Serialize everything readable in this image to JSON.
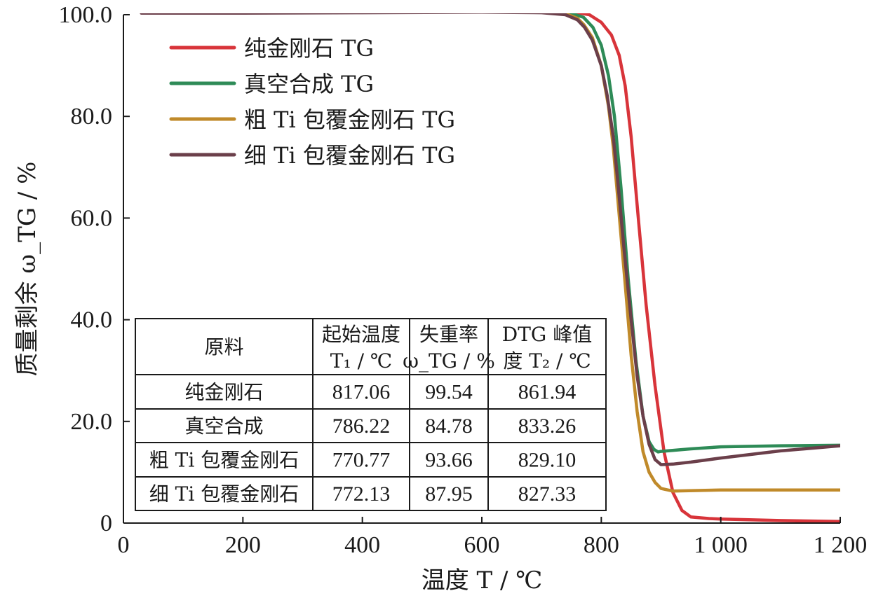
{
  "chart_data": {
    "type": "line",
    "xlabel": "温度 T / ℃",
    "ylabel": "质量剩余 ω_TG / %",
    "xlim": [
      0,
      1200
    ],
    "ylim": [
      0,
      100
    ],
    "x_ticks": [
      {
        "value": 0,
        "label": "0"
      },
      {
        "value": 200,
        "label": "200"
      },
      {
        "value": 400,
        "label": "400"
      },
      {
        "value": 600,
        "label": "600"
      },
      {
        "value": 800,
        "label": "800"
      },
      {
        "value": 1000,
        "label": "1 000"
      },
      {
        "value": 1200,
        "label": "1 200"
      }
    ],
    "y_ticks": [
      {
        "value": 0,
        "label": "0"
      },
      {
        "value": 20,
        "label": "20.0"
      },
      {
        "value": 40,
        "label": "40.0"
      },
      {
        "value": 60,
        "label": "60.0"
      },
      {
        "value": 80,
        "label": "80.0"
      },
      {
        "value": 100,
        "label": "100.0"
      }
    ],
    "legend_position": "top-left",
    "series": [
      {
        "name": "纯金刚石 TG",
        "color": "#d8343a",
        "x": [
          30,
          200,
          400,
          600,
          700,
          750,
          780,
          800,
          817,
          830,
          840,
          850,
          862,
          875,
          890,
          905,
          920,
          935,
          950,
          980,
          1000,
          1100,
          1200
        ],
        "y": [
          100.5,
          100.5,
          100.6,
          100.7,
          100.7,
          100.6,
          100,
          98.5,
          96,
          92,
          86,
          76,
          60,
          43,
          27,
          14,
          6,
          2.5,
          1.2,
          0.9,
          0.8,
          0.5,
          0.3
        ]
      },
      {
        "name": "真空合成 TG",
        "color": "#2e8b57",
        "x": [
          30,
          200,
          400,
          600,
          700,
          740,
          770,
          786,
          800,
          812,
          822,
          833,
          845,
          858,
          870,
          880,
          888,
          895,
          900,
          950,
          1000,
          1100,
          1200
        ],
        "y": [
          100.4,
          100.4,
          100.5,
          100.6,
          100.8,
          100.6,
          99.5,
          97.5,
          94,
          88,
          80,
          66,
          48,
          32,
          21,
          16,
          14.5,
          14,
          14.1,
          14.6,
          15,
          15.2,
          15.3
        ]
      },
      {
        "name": "粗 Ti 包覆金刚石 TG",
        "color": "#c08a2a",
        "x": [
          30,
          200,
          400,
          600,
          700,
          740,
          760,
          771,
          785,
          800,
          812,
          820,
          829,
          840,
          850,
          860,
          870,
          880,
          890,
          900,
          920,
          1000,
          1100,
          1200
        ],
        "y": [
          100.5,
          100.5,
          100.6,
          100.7,
          100.6,
          100.2,
          99.3,
          98,
          95.5,
          90,
          82,
          74,
          62,
          47,
          33,
          22,
          14,
          10,
          8,
          6.8,
          6.3,
          6.5,
          6.5,
          6.5
        ]
      },
      {
        "name": "细 Ti 包覆金刚石 TG",
        "color": "#6b3f4a",
        "x": [
          30,
          200,
          400,
          600,
          700,
          740,
          760,
          772,
          785,
          800,
          810,
          820,
          827,
          838,
          850,
          860,
          870,
          880,
          890,
          900,
          920,
          950,
          1000,
          1100,
          1200
        ],
        "y": [
          100.3,
          100.3,
          100.4,
          100.5,
          100.4,
          100,
          99,
          97.5,
          95,
          90,
          84,
          76,
          68,
          54,
          40,
          29,
          21,
          15.5,
          12.5,
          11.5,
          11.6,
          12,
          12.8,
          14.2,
          15.2
        ]
      }
    ],
    "table": {
      "headers": [
        {
          "line1": "原料",
          "line2": ""
        },
        {
          "line1": "起始温度",
          "line2": "T₁ / ℃"
        },
        {
          "line1": "失重率",
          "line2": "ω_TG / %"
        },
        {
          "line1": "DTG 峰值",
          "line2": "度 T₂ / ℃"
        }
      ],
      "rows": [
        [
          "纯金刚石",
          "817.06",
          "99.54",
          "861.94"
        ],
        [
          "真空合成",
          "786.22",
          "84.78",
          "833.26"
        ],
        [
          "粗 Ti 包覆金刚石",
          "770.77",
          "93.66",
          "829.10"
        ],
        [
          "细 Ti 包覆金刚石",
          "772.13",
          "87.95",
          "827.33"
        ]
      ]
    }
  }
}
